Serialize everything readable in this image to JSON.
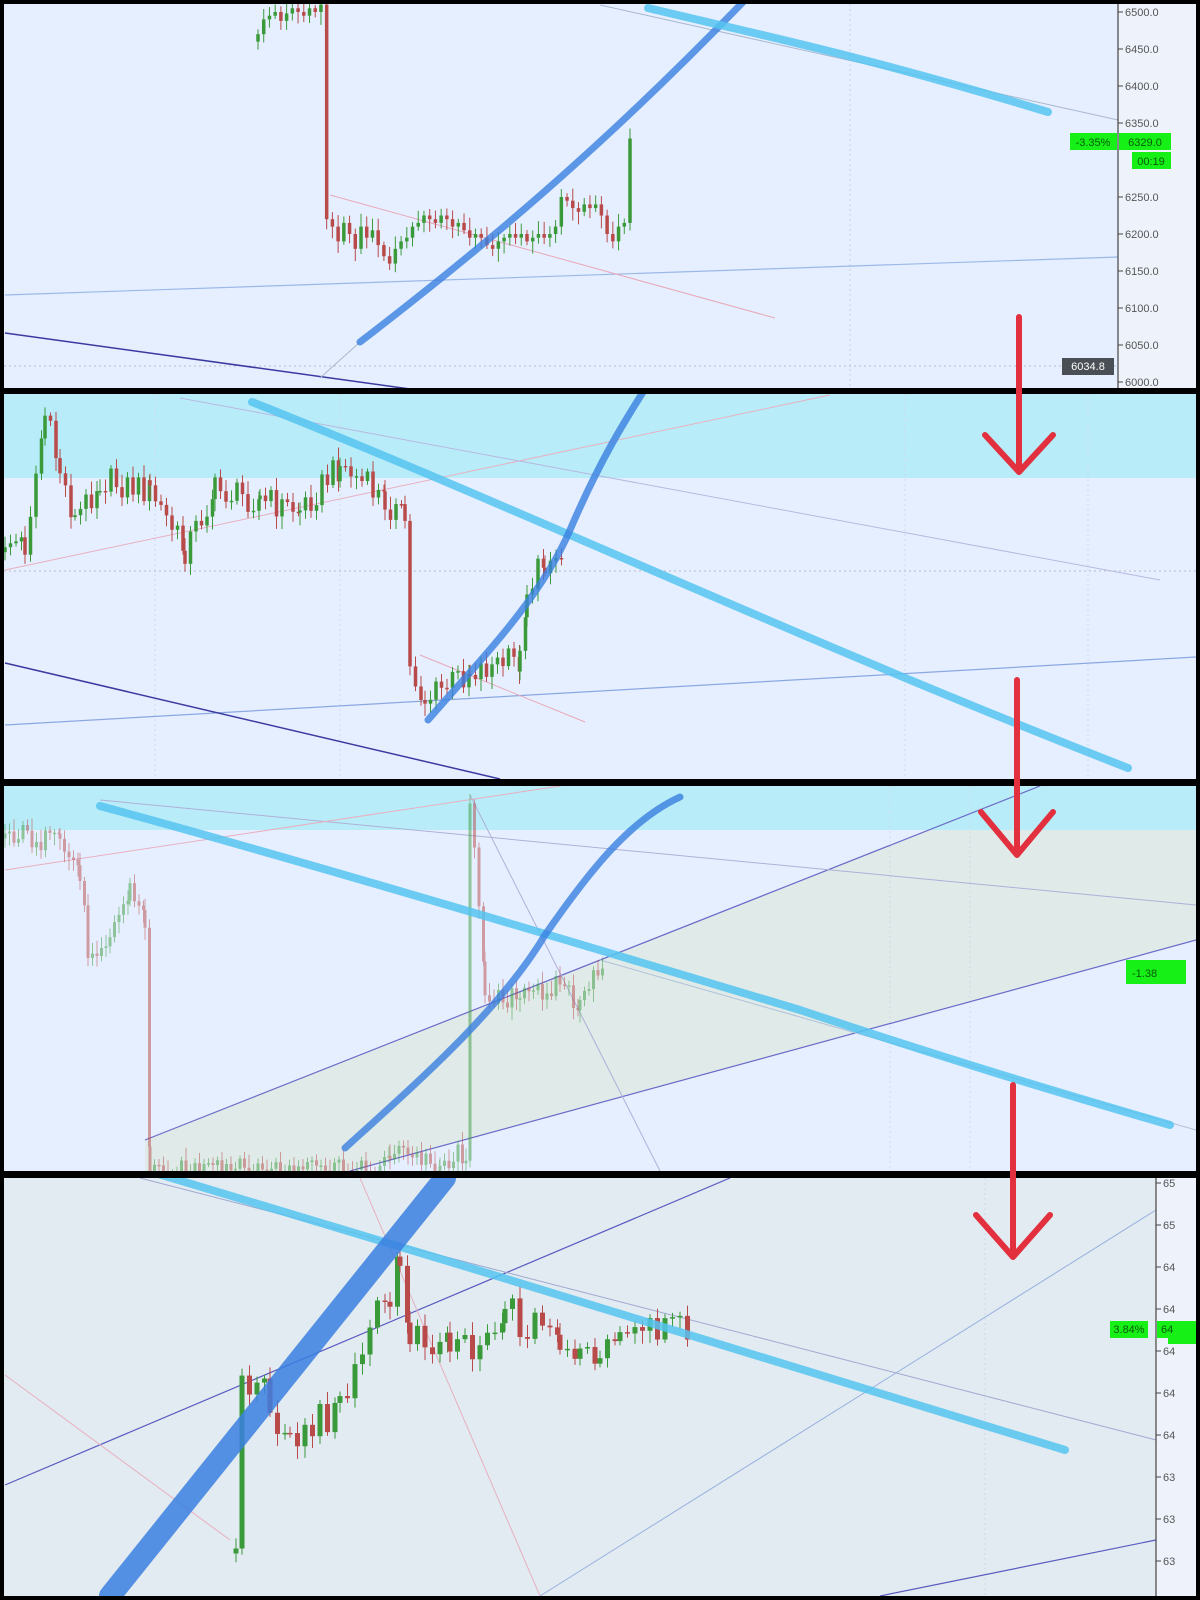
{
  "colors": {
    "background": "#e6efff",
    "bull": "#3a9a3a",
    "bear": "#b84a4a",
    "cyan_trendline": "#55c4f0",
    "blue_trendline": "#3a7fe0",
    "arrow": "#e2303e",
    "price_badge": "#16f016",
    "crosshair_badge": "#4a4f55"
  },
  "icons": [
    "down-arrow-icon",
    "down-arrow-icon",
    "down-arrow-icon"
  ],
  "panels": [
    {
      "axis_labels": [
        "6500.0",
        "6450.0",
        "6400.0",
        "6350.0",
        "6250.0",
        "6200.0",
        "6150.0",
        "6100.0",
        "6050.0",
        "6000.0"
      ],
      "change_badge": "-3.35%",
      "price_badge": "6329.0",
      "countdown_badge": "00:19",
      "crosshair_badge": "6034.8"
    },
    {},
    {
      "change_badge": "-1.38"
    },
    {
      "axis_labels": [
        "65",
        "65",
        "64",
        "64",
        "64",
        "64",
        "64",
        "63",
        "63",
        "63"
      ],
      "change_badge": "3.84%",
      "price_badge": "64"
    }
  ],
  "chart_data": [
    {
      "type": "candlestick",
      "title": "",
      "ylim": [
        6000,
        6510
      ],
      "y_ticks": [
        6000,
        6050,
        6100,
        6150,
        6200,
        6250,
        6300,
        6350,
        6400,
        6450,
        6500
      ],
      "closes": [
        6470,
        6490,
        6495,
        6500,
        6488,
        6498,
        6505,
        6500,
        6495,
        6505,
        6500,
        6510,
        6220,
        6210,
        6190,
        6215,
        6200,
        6180,
        6210,
        6195,
        6205,
        6185,
        6170,
        6160,
        6180,
        6190,
        6195,
        6210,
        6215,
        6225,
        6220,
        6215,
        6225,
        6220,
        6210,
        6215,
        6205,
        6195,
        6200,
        6195,
        6185,
        6180,
        6190,
        6195,
        6200,
        6195,
        6200,
        6190,
        6195,
        6200,
        6195,
        6200,
        6210,
        6250,
        6245,
        6235,
        6230,
        6240,
        6235,
        6240,
        6225,
        6200,
        6190,
        6210,
        6215,
        6329
      ],
      "last_price": 6329.0,
      "change_percent": -3.35
    }
  ]
}
